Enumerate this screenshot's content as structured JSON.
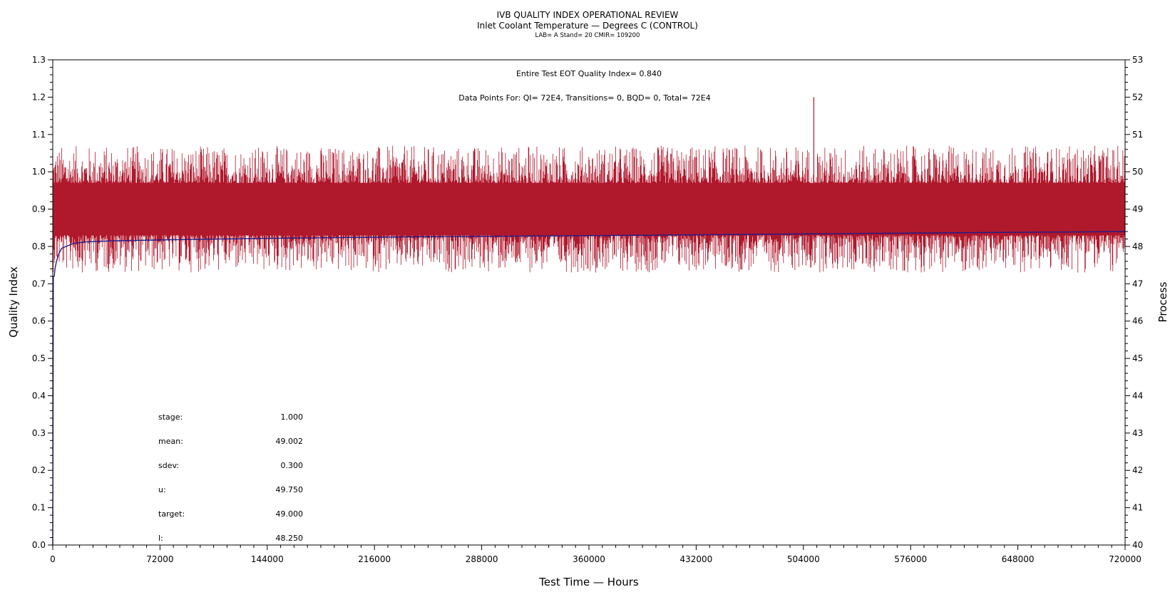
{
  "chart_data": {
    "type": "line",
    "title": "IVB QUALITY INDEX OPERATIONAL REVIEW",
    "subtitle": "Inlet Coolant Temperature — Degrees C (CONTROL)",
    "subtitle2": "LAB= A Stand= 20 CMIR= 109200",
    "xlabel": "Test Time — Hours",
    "ylabel": "Quality Index",
    "y2label": "Process",
    "xlim": [
      0,
      720000
    ],
    "ylim": [
      0.0,
      1.3
    ],
    "y2lim": [
      40,
      53
    ],
    "xticks": [
      "0",
      "72000",
      "144000",
      "216000",
      "288000",
      "360000",
      "432000",
      "504000",
      "576000",
      "648000",
      "720000"
    ],
    "yticks": [
      "0.0",
      "0.1",
      "0.2",
      "0.3",
      "0.4",
      "0.5",
      "0.6",
      "0.7",
      "0.8",
      "0.9",
      "1.0",
      "1.1",
      "1.2",
      "1.3"
    ],
    "y2ticks": [
      "40",
      "41",
      "42",
      "43",
      "44",
      "45",
      "46",
      "47",
      "48",
      "49",
      "50",
      "51",
      "52",
      "53"
    ],
    "grid": false,
    "annotations": {
      "eot_line": "Entire Test EOT Quality Index=   0.840",
      "points_line": "Data Points For: QI=  72E4, Transitions=     0, BQD=     0, Total=  72E4"
    },
    "stats": [
      {
        "label": "stage:",
        "value": "1.000"
      },
      {
        "label": "mean:",
        "value": "49.002"
      },
      {
        "label": "sdev:",
        "value": "0.300"
      },
      {
        "label": "u:",
        "value": "49.750"
      },
      {
        "label": "target:",
        "value": "49.000"
      },
      {
        "label": "l:",
        "value": "48.250"
      }
    ],
    "series": [
      {
        "color": "#b0182c",
        "band_quality_index": [
          0.83,
          0.97
        ],
        "spike_range": [
          0.73,
          1.07
        ],
        "outlier": {
          "x": 511000,
          "y": 1.2
        }
      },
      {
        "color": "#1c1c8c",
        "x": [
          0,
          400,
          1000,
          1500,
          2500,
          4000,
          6000,
          9000,
          14000,
          22000,
          40000,
          80000,
          150000,
          250000,
          400000,
          550000,
          720000
        ],
        "y": [
          0.0,
          0.72,
          0.72,
          0.74,
          0.76,
          0.78,
          0.795,
          0.8,
          0.808,
          0.812,
          0.815,
          0.818,
          0.822,
          0.826,
          0.83,
          0.835,
          0.84
        ]
      }
    ]
  }
}
